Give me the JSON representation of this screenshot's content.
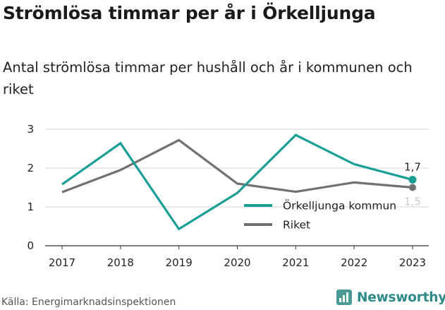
{
  "title": "Strömlösa timmar per år i Örkelljunga",
  "subtitle": "Antal strömlösa timmar per hushåll och år i kommunen och riket",
  "source": "Källa: Energimarknadsinspektionen",
  "brand": {
    "name": "Newsworthy",
    "icon": "newsworthy-logo-icon",
    "color": "#2f8a8a"
  },
  "chart_data": {
    "type": "line",
    "x": [
      "2017",
      "2018",
      "2019",
      "2020",
      "2021",
      "2022",
      "2023"
    ],
    "ylim": [
      0,
      3
    ],
    "yticks": [
      0,
      1,
      2,
      3
    ],
    "grid": true,
    "legend_position": "right",
    "series": [
      {
        "name": "Örkelljunga kommun",
        "color": "#1a9e96",
        "values": [
          1.58,
          2.64,
          0.43,
          1.36,
          2.85,
          2.1,
          1.7
        ],
        "end_label": "1,7"
      },
      {
        "name": "Riket",
        "color": "#707075",
        "values": [
          1.38,
          1.95,
          2.72,
          1.6,
          1.39,
          1.63,
          1.5
        ],
        "end_label": "1,5"
      }
    ]
  }
}
